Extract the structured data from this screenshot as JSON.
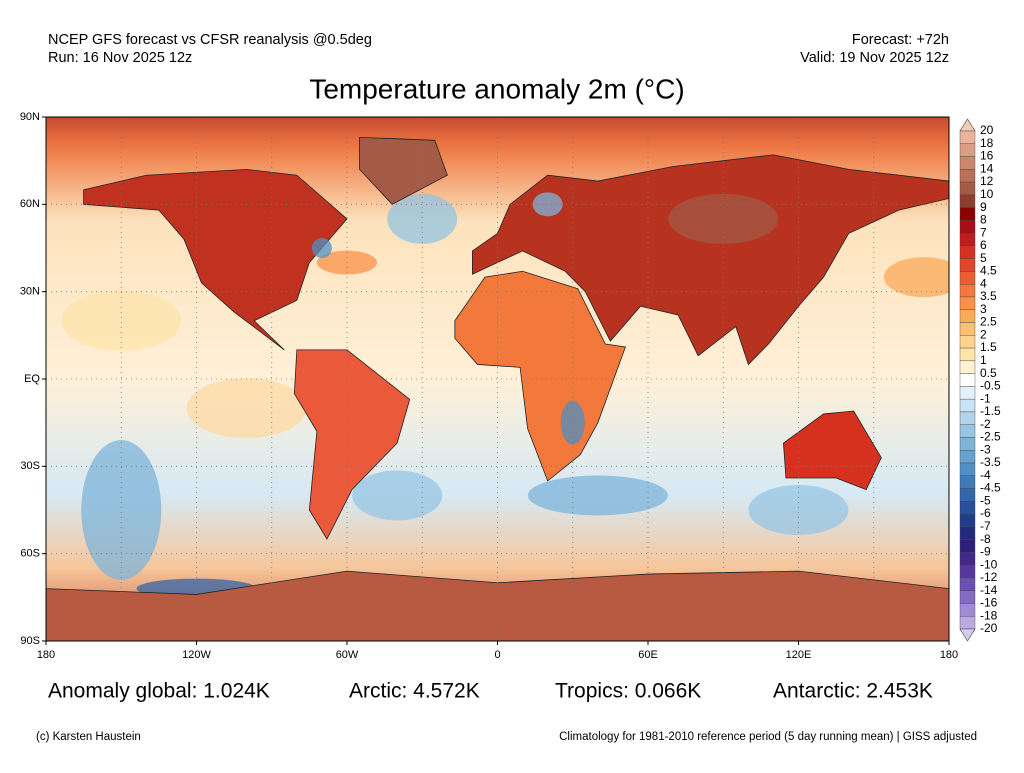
{
  "header": {
    "source": "NCEP GFS forecast vs CFSR reanalysis @0.5deg",
    "run": "Run: 16 Nov 2025 12z",
    "forecast": "Forecast: +72h",
    "valid": "Valid: 19 Nov 2025 12z",
    "title": "Temperature anomaly 2m (°C)"
  },
  "map": {
    "lat_labels": [
      "90N",
      "60N",
      "30N",
      "EQ",
      "30S",
      "60S",
      "90S"
    ],
    "lon_labels": [
      "180",
      "120W",
      "60W",
      "0",
      "60E",
      "120E",
      "180"
    ]
  },
  "colorbar": {
    "levels": [
      20,
      18,
      16,
      14,
      12,
      10,
      9,
      8,
      7,
      6,
      5,
      4.5,
      4,
      3.5,
      3,
      2.5,
      2,
      1.5,
      1,
      0.5,
      -0.5,
      -1,
      -1.5,
      -2,
      -2.5,
      -3,
      -3.5,
      -4,
      -4.5,
      -5,
      -6,
      -7,
      -8,
      -9,
      -10,
      -12,
      -14,
      -16,
      -18,
      -20
    ],
    "colors": [
      "#f5cbb8",
      "#eab39c",
      "#dc9d85",
      "#cb866e",
      "#b87059",
      "#a35a46",
      "#8c3f30",
      "#8b0000",
      "#a50f15",
      "#bf1d1d",
      "#d6301f",
      "#e2452a",
      "#ec5e32",
      "#f3783b",
      "#f89248",
      "#fbaa5a",
      "#fdc071",
      "#fed38d",
      "#fee3ab",
      "#fff1d2",
      "#ffffff",
      "#e2f1f9",
      "#c9e4f2",
      "#b0d5eb",
      "#97c5e3",
      "#7eb4da",
      "#67a2cf",
      "#528fc4",
      "#407bb7",
      "#3166a8",
      "#275199",
      "#213d8a",
      "#232b7c",
      "#2e1f78",
      "#43278a",
      "#57379c",
      "#6d4fb2",
      "#856bc4",
      "#a08bd5",
      "#bba9e3",
      "#d6caf1"
    ]
  },
  "stats": {
    "global": "Anomaly global: 1.024K",
    "arctic": "Arctic: 4.572K",
    "tropics": "Tropics: 0.066K",
    "antarctic": "Antarctic: 2.453K"
  },
  "footer": {
    "credit": "(c) Karsten Haustein",
    "note": "Climatology for 1981-2010 reference period (5 day running mean) | GISS adjusted"
  }
}
